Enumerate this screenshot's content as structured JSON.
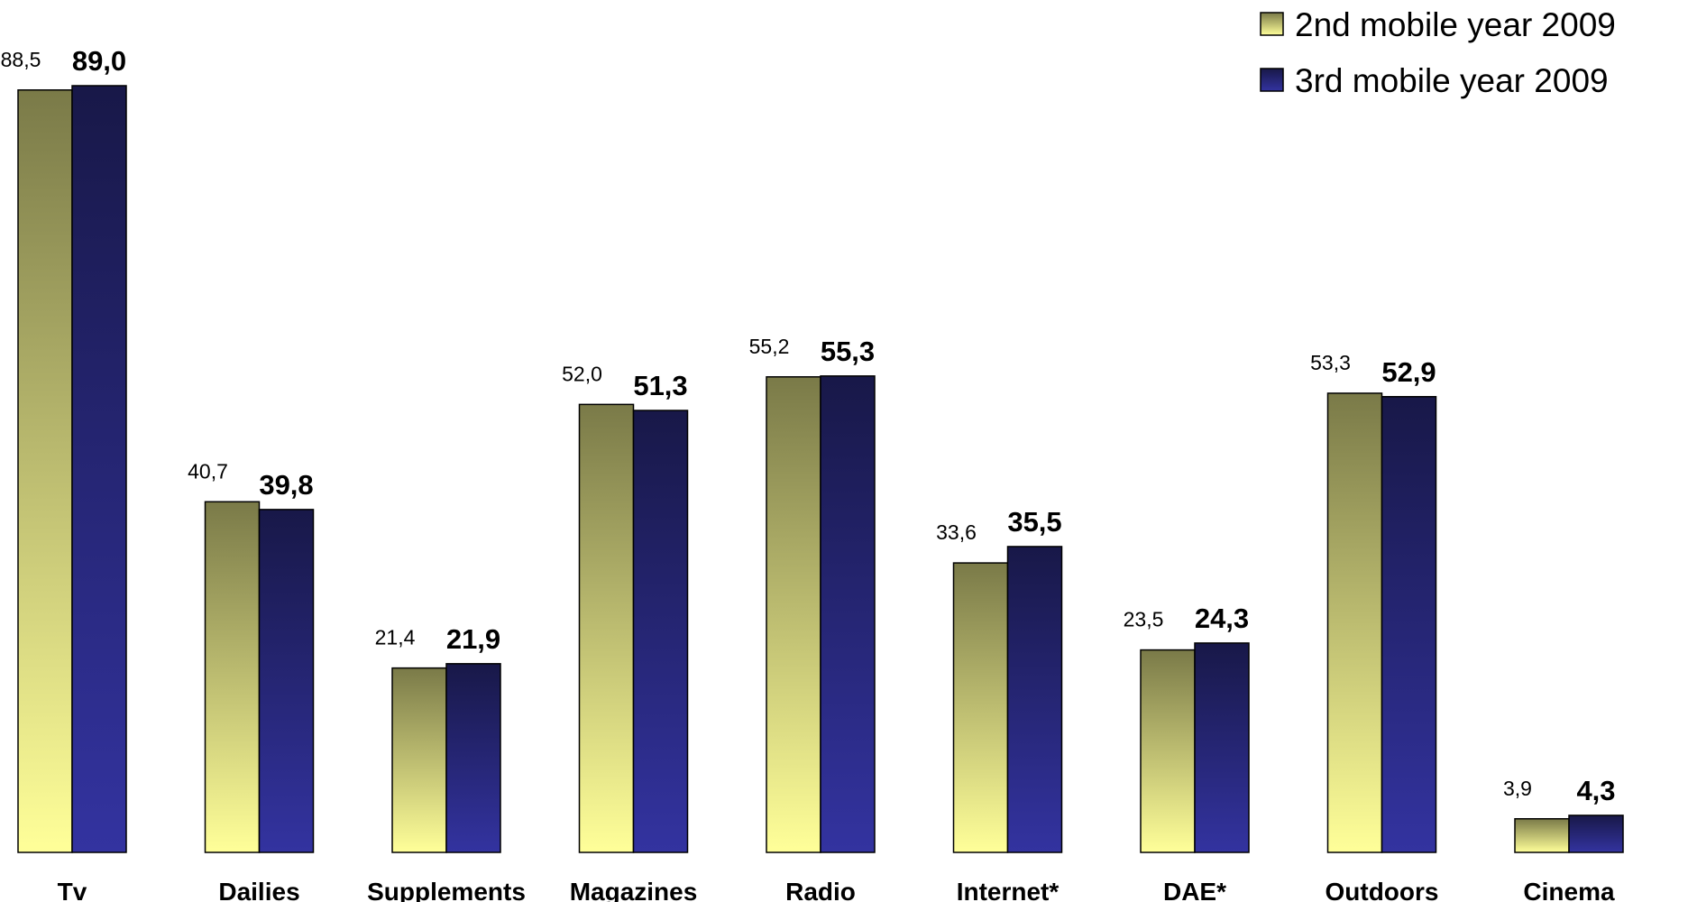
{
  "chart_data": {
    "type": "bar",
    "categories": [
      "Tv",
      "Dailies",
      "Supplements",
      "Magazines",
      "Radio",
      "Internet*",
      "DAE*",
      "Outdoors",
      "Cinema"
    ],
    "series": [
      {
        "name": "2nd mobile year 2009",
        "values": [
          88.5,
          40.7,
          21.4,
          52.0,
          55.2,
          33.6,
          23.5,
          53.3,
          3.9
        ],
        "labels": [
          "88,5",
          "40,7",
          "21,4",
          "52,0",
          "55,2",
          "33,6",
          "23,5",
          "53,3",
          "3,9"
        ]
      },
      {
        "name": "3rd mobile year 2009",
        "values": [
          89.0,
          39.8,
          21.9,
          51.3,
          55.3,
          35.5,
          24.3,
          52.9,
          4.3
        ],
        "labels": [
          "89,0",
          "39,8",
          "21,9",
          "51,3",
          "55,3",
          "35,5",
          "24,3",
          "52,9",
          "4,3"
        ]
      }
    ],
    "title": "",
    "xlabel": "",
    "ylabel": "",
    "ylim": [
      0,
      89
    ],
    "grid": false,
    "legend": "top-right",
    "colors": {
      "series1_top": "#7a7a48",
      "series1_bottom": "#ffff99",
      "series2_top": "#181848",
      "series2_bottom": "#3333a0"
    }
  }
}
